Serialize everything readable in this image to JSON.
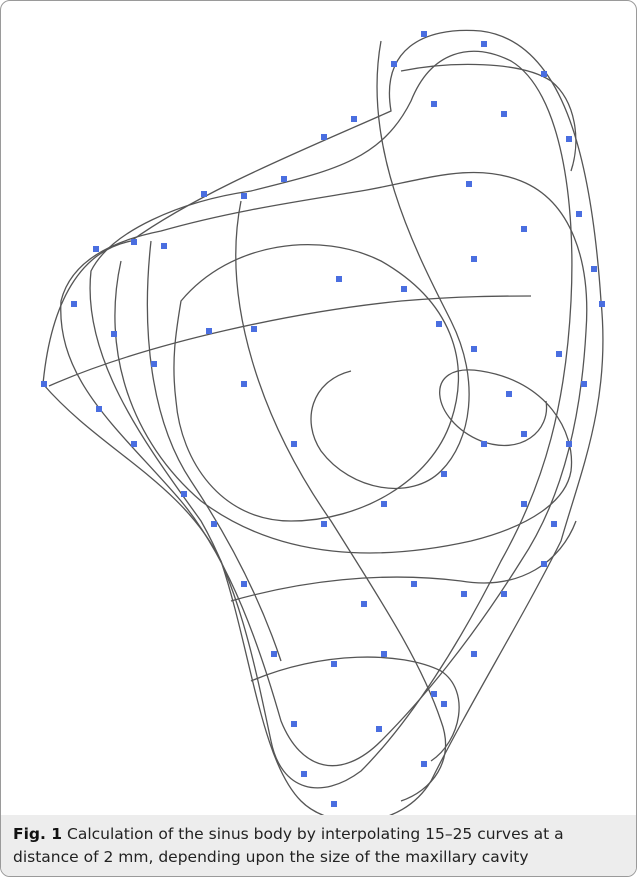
{
  "figure": {
    "label": "Fig. 1",
    "caption": "Calculation of the sinus body by interpolating 15–25 curves at a distance of 2 mm, depending upon the size of the maxillary cavity"
  }
}
